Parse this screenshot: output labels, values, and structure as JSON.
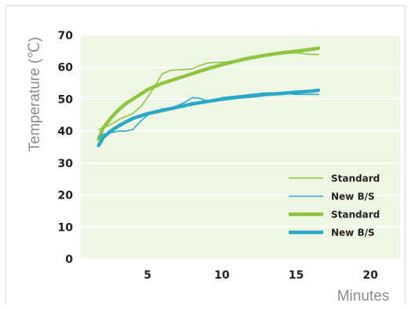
{
  "chart_data": {
    "type": "line",
    "xlabel": "Minutes",
    "ylabel": "Temperature (℃)",
    "xlim": [
      0.5,
      22
    ],
    "ylim": [
      0,
      70
    ],
    "x_ticks": [
      5,
      10,
      15,
      20
    ],
    "y_ticks": [
      0,
      10,
      20,
      30,
      40,
      50,
      60,
      70
    ],
    "grid": "horizontal",
    "legend_position": "bottom-right",
    "series": [
      {
        "name": "Standard",
        "style": "thin",
        "color": "#8cc63f",
        "x": [
          1.7,
          2.5,
          3.2,
          4.0,
          4.6,
          5.2,
          5.6,
          6.0,
          6.5,
          7.0,
          7.5,
          8.0,
          8.5,
          9.0,
          9.5,
          10.0,
          11.0,
          12.0,
          13.0,
          14.0,
          15.0,
          16.0,
          16.5
        ],
        "y": [
          40.5,
          42,
          44,
          45.5,
          48,
          52,
          55,
          58,
          59,
          59.2,
          59.3,
          59.5,
          60.5,
          61.3,
          61.5,
          61.5,
          62,
          63,
          64,
          64.5,
          64.5,
          64,
          64
        ]
      },
      {
        "name": "New B/S",
        "style": "thin",
        "color": "#2aa9c7",
        "x": [
          1.7,
          2.0,
          2.5,
          3.0,
          3.5,
          4.0,
          4.5,
          5.0,
          5.5,
          6.0,
          6.5,
          7.0,
          7.5,
          8.0,
          8.5,
          9.0,
          9.5,
          10.0,
          11.0,
          12.0,
          13.0,
          14.0,
          15.0,
          16.0,
          16.5
        ],
        "y": [
          38,
          39,
          39.5,
          40,
          40,
          40.5,
          43,
          45,
          46,
          47,
          47.2,
          48,
          49,
          50.5,
          50.3,
          49.5,
          49.5,
          50.5,
          51,
          51.5,
          52,
          52,
          51.5,
          51.5,
          51.5
        ]
      },
      {
        "name": "Standard",
        "style": "thick",
        "color": "#8cc63f",
        "x": [
          1.7,
          2.0,
          2.5,
          3.0,
          3.5,
          4.0,
          5.0,
          6.0,
          7.0,
          8.0,
          9.0,
          10.0,
          11.0,
          12.0,
          13.0,
          14.0,
          15.0,
          16.0,
          16.5
        ],
        "y": [
          37.5,
          41,
          44,
          46.5,
          48.5,
          50,
          53,
          55,
          56.5,
          58,
          59.5,
          60.8,
          62,
          63,
          63.8,
          64.5,
          65,
          65.6,
          66
        ]
      },
      {
        "name": "New B/S",
        "style": "thick",
        "color": "#2aa9c7",
        "x": [
          1.7,
          2.0,
          2.5,
          3.0,
          3.5,
          4.0,
          5.0,
          6.0,
          7.0,
          8.0,
          9.0,
          10.0,
          11.0,
          12.0,
          13.0,
          14.0,
          15.0,
          16.0,
          16.5
        ],
        "y": [
          35.5,
          38,
          40,
          41.5,
          42.8,
          44,
          45.5,
          46.5,
          47.5,
          48.5,
          49.3,
          50,
          50.6,
          51,
          51.5,
          51.8,
          52.2,
          52.5,
          52.8
        ]
      }
    ]
  }
}
